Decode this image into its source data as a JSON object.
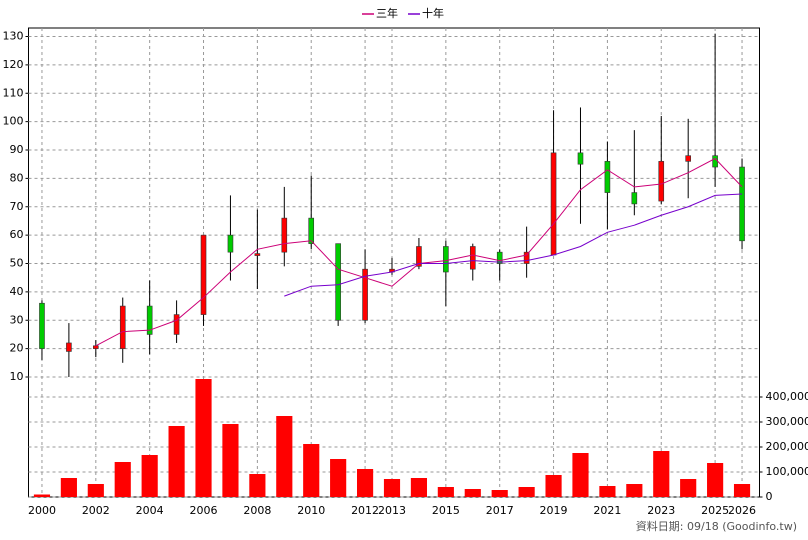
{
  "chart_data": {
    "type": "candlestick",
    "categories": [
      "2000",
      null,
      "2002",
      null,
      "2004",
      null,
      "2006",
      null,
      "2008",
      null,
      "2010",
      null,
      "2012",
      "2013",
      null,
      "2015",
      null,
      "2017",
      null,
      "2019",
      null,
      "2021",
      null,
      "2023",
      null,
      "2025",
      "2026"
    ],
    "open": [
      36,
      19,
      20,
      20,
      35,
      25,
      32,
      60,
      53,
      54,
      66,
      57,
      30,
      47,
      49,
      56,
      48,
      54,
      50,
      53,
      89,
      86,
      75,
      72,
      86,
      88,
      84
    ],
    "close": [
      20,
      22,
      21,
      35,
      25,
      32,
      60,
      54,
      53.5,
      66,
      57,
      30,
      48,
      48,
      56,
      47,
      56,
      50,
      54,
      89,
      85,
      75,
      71,
      86,
      88,
      84,
      58
    ],
    "high": [
      37,
      29,
      23,
      38,
      44,
      37,
      60,
      74,
      69,
      77,
      81,
      57,
      55,
      52,
      59,
      58,
      57,
      55,
      63,
      104,
      105,
      93,
      97,
      102,
      101,
      131,
      87
    ],
    "low": [
      16,
      10,
      17,
      15,
      18,
      22,
      28,
      44,
      41,
      49,
      55,
      28,
      29,
      46,
      48,
      35,
      44,
      44,
      45,
      53,
      64,
      62,
      67,
      71,
      73,
      77,
      55
    ],
    "up_color": "#ff0000",
    "down_color": "#00cc00",
    "ylim": [
      10,
      133
    ],
    "yticks": [
      10,
      20,
      30,
      40,
      50,
      60,
      70,
      80,
      90,
      100,
      110,
      120,
      130
    ],
    "grid": true,
    "series": [
      {
        "name": "三年",
        "color": "#cc0077",
        "values": [
          null,
          null,
          21,
          26,
          26.5,
          30,
          38,
          47,
          55,
          57,
          58,
          48,
          45,
          42,
          50,
          51,
          53,
          51,
          53,
          64,
          76,
          83,
          77,
          78,
          82,
          87,
          77
        ]
      },
      {
        "name": "十年",
        "color": "#7700cc",
        "values": [
          null,
          null,
          null,
          null,
          null,
          null,
          null,
          null,
          null,
          38.5,
          42,
          42.5,
          45.5,
          47,
          50,
          50,
          51,
          50.5,
          51,
          53,
          56,
          61,
          63.5,
          67,
          70,
          74,
          74.5
        ]
      }
    ],
    "volume": {
      "color": "#ff0000",
      "values": [
        10000,
        76000,
        52000,
        140000,
        168000,
        284000,
        472000,
        292000,
        92000,
        324000,
        212000,
        152000,
        112000,
        72000,
        76000,
        40000,
        32000,
        28000,
        40000,
        88000,
        176000,
        44000,
        52000,
        184000,
        72000,
        136000,
        52000
      ],
      "ylim": [
        0,
        468000
      ],
      "yticks": [
        0,
        {
          "value": 100000,
          "label": "100,000"
        },
        {
          "value": 200000,
          "label": "200,000"
        },
        {
          "value": 300000,
          "label": "300,000"
        },
        {
          "value": 400000,
          "label": "400,000"
        }
      ]
    },
    "footer": "資料日期: 09/18 (Goodinfo.tw)"
  }
}
